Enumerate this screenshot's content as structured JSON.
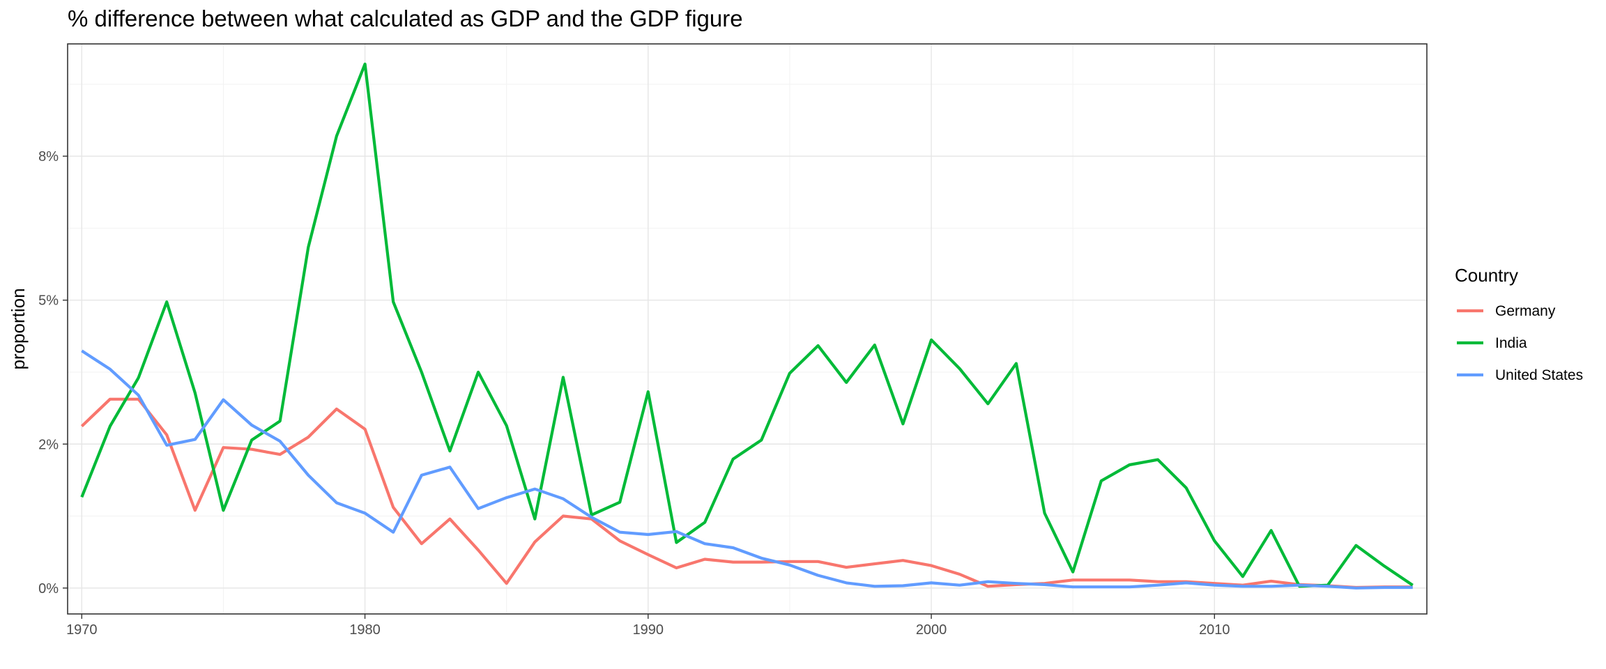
{
  "chart_data": {
    "type": "line",
    "title": "% difference between what calculated as GDP and the GDP figure",
    "xlabel": "",
    "ylabel": "proportion",
    "xlim": [
      1969.5,
      2017.5
    ],
    "ylim": [
      -0.0045,
      0.0945
    ],
    "x_ticks": [
      1970,
      1980,
      1990,
      2000,
      2010
    ],
    "y_ticks": [
      0,
      0.025,
      0.05,
      0.075
    ],
    "y_tick_labels": [
      "0%",
      "2%",
      "5%",
      "8%"
    ],
    "grid": true,
    "legend": {
      "title": "Country",
      "position": "right"
    },
    "x": [
      1970,
      1971,
      1972,
      1973,
      1974,
      1975,
      1976,
      1977,
      1978,
      1979,
      1980,
      1981,
      1982,
      1983,
      1984,
      1985,
      1986,
      1987,
      1988,
      1989,
      1990,
      1991,
      1992,
      1993,
      1994,
      1995,
      1996,
      1997,
      1998,
      1999,
      2000,
      2001,
      2002,
      2003,
      2004,
      2005,
      2006,
      2007,
      2008,
      2009,
      2010,
      2011,
      2012,
      2013,
      2014,
      2015,
      2016,
      2017
    ],
    "series": [
      {
        "name": "Germany",
        "color": "#F8766D",
        "values": [
          0.0281,
          0.0328,
          0.0328,
          0.0266,
          0.0135,
          0.0244,
          0.0241,
          0.0232,
          0.0262,
          0.0311,
          0.0276,
          0.014,
          0.0077,
          0.012,
          0.0066,
          0.0008,
          0.008,
          0.0125,
          0.012,
          0.0082,
          0.0058,
          0.0035,
          0.005,
          0.0045,
          0.0045,
          0.0046,
          0.0046,
          0.0036,
          0.0042,
          0.0048,
          0.0039,
          0.0024,
          0.0003,
          0.0006,
          0.0008,
          0.0014,
          0.0014,
          0.0014,
          0.0011,
          0.0011,
          0.0008,
          0.0005,
          0.0012,
          0.0006,
          0.0004,
          0.0001,
          0.0002,
          0.0002
        ]
      },
      {
        "name": "India",
        "color": "#00BA38",
        "values": [
          0.0158,
          0.0281,
          0.0365,
          0.0497,
          0.0339,
          0.0135,
          0.0257,
          0.029,
          0.0592,
          0.0785,
          0.091,
          0.0497,
          0.0375,
          0.0238,
          0.0375,
          0.0282,
          0.012,
          0.0366,
          0.0127,
          0.0149,
          0.0341,
          0.0079,
          0.0114,
          0.0224,
          0.0257,
          0.0373,
          0.0421,
          0.0357,
          0.0422,
          0.0285,
          0.0431,
          0.0381,
          0.032,
          0.039,
          0.013,
          0.0028,
          0.0186,
          0.0214,
          0.0223,
          0.0174,
          0.0082,
          0.002,
          0.01,
          0.0003,
          0.0005,
          0.0074,
          0.0038,
          0.0005
        ]
      },
      {
        "name": "United States",
        "color": "#619CFF",
        "values": [
          0.0412,
          0.038,
          0.0335,
          0.0248,
          0.0258,
          0.0327,
          0.0283,
          0.0255,
          0.0196,
          0.0148,
          0.013,
          0.0097,
          0.0196,
          0.021,
          0.0138,
          0.0157,
          0.0172,
          0.0155,
          0.0123,
          0.0097,
          0.0093,
          0.0098,
          0.0077,
          0.007,
          0.0052,
          0.004,
          0.0022,
          0.0009,
          0.0003,
          0.0004,
          0.0009,
          0.0005,
          0.0011,
          0.0008,
          0.0006,
          0.0002,
          0.0002,
          0.0002,
          0.0005,
          0.0009,
          0.0005,
          0.0003,
          0.0003,
          0.0005,
          0.0003,
          0.0,
          0.0001,
          0.0001
        ]
      }
    ]
  }
}
